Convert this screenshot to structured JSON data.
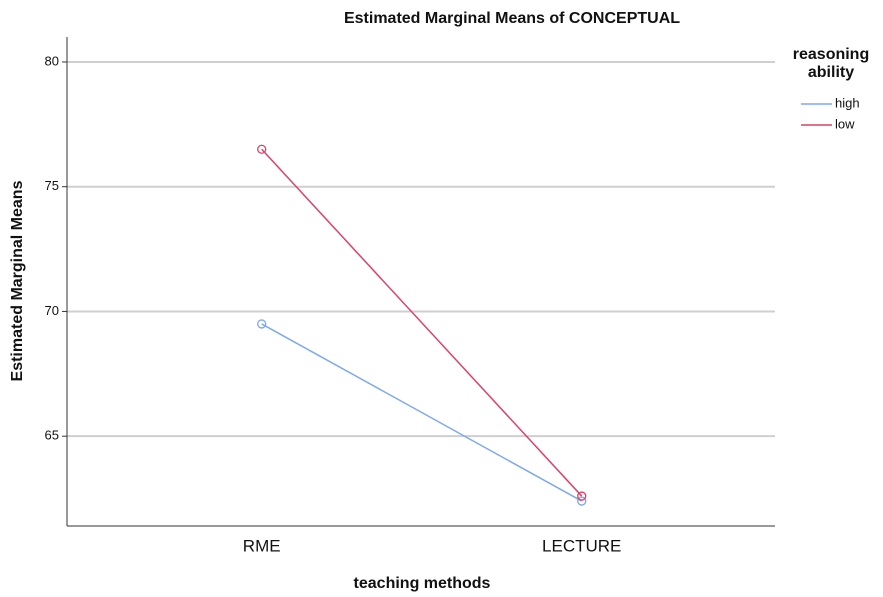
{
  "chart_data": {
    "type": "line",
    "title": "Estimated Marginal Means of CONCEPTUAL",
    "x_label": "teaching methods",
    "y_label": "Estimated Marginal Means",
    "legend_title": "reasoning ability",
    "categories": [
      "RME",
      "LECTURE"
    ],
    "series": [
      {
        "name": "high",
        "color": "#7ea9e8",
        "values": [
          69.5,
          62.4
        ]
      },
      {
        "name": "low",
        "color": "#d9426c",
        "values": [
          76.5,
          62.6
        ]
      }
    ],
    "ylim": [
      61.4,
      81.0
    ],
    "yticks": [
      65,
      70,
      75,
      80
    ],
    "grid": true,
    "legend": "right"
  }
}
